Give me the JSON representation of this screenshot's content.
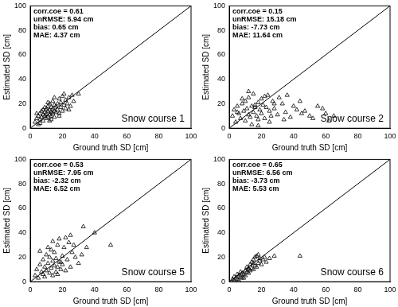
{
  "chart_data": [
    {
      "type": "scatter",
      "title": "Snow course 1",
      "x_label": "Ground truth SD [cm]",
      "y_label": "Estimated SD [cm]",
      "annotations": [
        "corr.coe = 0.61",
        "unRMSE: 5.94 cm",
        "bias: 0.65 cm",
        "MAE: 4.37 cm"
      ],
      "xlim": [
        0,
        100
      ],
      "ylim": [
        0,
        100
      ],
      "xticks": [
        0,
        20,
        40,
        60,
        80,
        100
      ],
      "yticks": [
        0,
        20,
        40,
        60,
        80,
        100
      ],
      "grid": false,
      "series": [
        {
          "type": "scatter",
          "marker": "triangle",
          "color": "#000000",
          "x": [
            3,
            4,
            5,
            5,
            6,
            6,
            7,
            7,
            8,
            8,
            8,
            9,
            9,
            10,
            10,
            10,
            11,
            11,
            11,
            12,
            12,
            12,
            13,
            13,
            13,
            14,
            14,
            14,
            15,
            15,
            15,
            16,
            16,
            17,
            17,
            18,
            18,
            19,
            19,
            20,
            20,
            21,
            22,
            22,
            23,
            24,
            25,
            26,
            27,
            30,
            4,
            6,
            9,
            12,
            15,
            18,
            21,
            24,
            11,
            13
          ],
          "values": [
            5,
            8,
            3,
            10,
            7,
            12,
            9,
            14,
            6,
            11,
            15,
            10,
            13,
            8,
            12,
            16,
            9,
            14,
            18,
            11,
            15,
            20,
            10,
            13,
            17,
            12,
            16,
            22,
            9,
            14,
            19,
            13,
            18,
            15,
            20,
            12,
            24,
            17,
            21,
            14,
            26,
            19,
            16,
            23,
            20,
            25,
            18,
            27,
            22,
            28,
            12,
            4,
            17,
            6,
            25,
            10,
            28,
            15,
            21,
            7
          ]
        },
        {
          "type": "line",
          "line_style": "solid",
          "color": "#000000",
          "x": [
            0,
            100
          ],
          "values": [
            0,
            100
          ]
        }
      ]
    },
    {
      "type": "scatter",
      "title": "Snow course 2",
      "x_label": "Ground truth SD [cm]",
      "y_label": "Estimated SD [cm]",
      "annotations": [
        "corr.coe = 0.15",
        "unRMSE: 15.18 cm",
        "bias: -7.73 cm",
        "MAE: 11.64 cm"
      ],
      "xlim": [
        0,
        100
      ],
      "ylim": [
        0,
        100
      ],
      "xticks": [
        0,
        20,
        40,
        60,
        80,
        100
      ],
      "yticks": [
        0,
        20,
        40,
        60,
        80,
        100
      ],
      "grid": false,
      "series": [
        {
          "type": "scatter",
          "marker": "triangle",
          "color": "#000000",
          "x": [
            2,
            3,
            4,
            5,
            6,
            7,
            8,
            9,
            10,
            10,
            11,
            12,
            12,
            13,
            14,
            15,
            15,
            16,
            17,
            18,
            18,
            19,
            20,
            20,
            21,
            22,
            23,
            24,
            25,
            26,
            27,
            28,
            30,
            31,
            33,
            35,
            36,
            38,
            40,
            42,
            44,
            45,
            47,
            50,
            52,
            55,
            58,
            60,
            62,
            65,
            5,
            8,
            14,
            16,
            22,
            25,
            12,
            18,
            28,
            34
          ],
          "values": [
            10,
            15,
            5,
            18,
            12,
            8,
            20,
            14,
            6,
            22,
            16,
            11,
            25,
            9,
            18,
            13,
            28,
            17,
            10,
            21,
            7,
            15,
            24,
            12,
            19,
            8,
            17,
            27,
            14,
            10,
            22,
            16,
            11,
            25,
            20,
            13,
            27,
            9,
            18,
            15,
            22,
            12,
            14,
            10,
            8,
            18,
            16,
            12,
            6,
            10,
            13,
            24,
            3,
            19,
            26,
            5,
            30,
            2,
            20,
            7
          ]
        },
        {
          "type": "line",
          "line_style": "solid",
          "color": "#000000",
          "x": [
            0,
            100
          ],
          "values": [
            0,
            100
          ]
        }
      ]
    },
    {
      "type": "scatter",
      "title": "Snow course 5",
      "x_label": "Ground truth SD [cm]",
      "y_label": "Estimated SD [cm]",
      "annotations": [
        "corr.coe = 0.53",
        "unRMSE: 7.95 cm",
        "bias: -2.32 cm",
        "MAE: 6.52 cm"
      ],
      "xlim": [
        0,
        100
      ],
      "ylim": [
        0,
        100
      ],
      "xticks": [
        0,
        20,
        40,
        60,
        80,
        100
      ],
      "yticks": [
        0,
        20,
        40,
        60,
        80,
        100
      ],
      "grid": false,
      "series": [
        {
          "type": "scatter",
          "marker": "triangle",
          "color": "#000000",
          "x": [
            3,
            4,
            5,
            6,
            7,
            8,
            8,
            9,
            10,
            10,
            11,
            12,
            12,
            13,
            13,
            14,
            14,
            15,
            15,
            16,
            16,
            17,
            17,
            18,
            18,
            19,
            20,
            20,
            21,
            22,
            23,
            24,
            25,
            25,
            26,
            28,
            30,
            32,
            33,
            35,
            40,
            50,
            6,
            9,
            11,
            14,
            17,
            19,
            22,
            27
          ],
          "values": [
            5,
            10,
            3,
            14,
            8,
            18,
            6,
            12,
            22,
            9,
            15,
            7,
            20,
            11,
            26,
            5,
            17,
            13,
            24,
            8,
            19,
            30,
            12,
            16,
            35,
            10,
            21,
            14,
            28,
            9,
            18,
            32,
            12,
            38,
            24,
            20,
            15,
            22,
            45,
            28,
            40,
            30,
            25,
            4,
            28,
            33,
            6,
            16,
            36,
            30
          ]
        },
        {
          "type": "line",
          "line_style": "solid",
          "color": "#000000",
          "x": [
            0,
            100
          ],
          "values": [
            0,
            100
          ]
        }
      ]
    },
    {
      "type": "scatter",
      "title": "Snow course 6",
      "x_label": "Ground truth SD [cm]",
      "y_label": "Estimated SD [cm]",
      "annotations": [
        "corr.coe = 0.65",
        "unRMSE: 6.56 cm",
        "bias: -3.73 cm",
        "MAE: 5.53 cm"
      ],
      "xlim": [
        0,
        100
      ],
      "ylim": [
        0,
        100
      ],
      "xticks": [
        0,
        20,
        40,
        60,
        80,
        100
      ],
      "yticks": [
        0,
        20,
        40,
        60,
        80,
        100
      ],
      "grid": false,
      "series": [
        {
          "type": "scatter",
          "marker": "triangle",
          "color": "#000000",
          "x": [
            2,
            3,
            3,
            4,
            5,
            5,
            6,
            7,
            7,
            8,
            8,
            9,
            10,
            10,
            11,
            11,
            12,
            12,
            13,
            13,
            14,
            14,
            15,
            15,
            16,
            16,
            17,
            17,
            18,
            18,
            19,
            19,
            20,
            21,
            22,
            23,
            25,
            28,
            44,
            6,
            9,
            12,
            15
          ],
          "values": [
            2,
            1,
            4,
            3,
            2,
            6,
            5,
            4,
            8,
            3,
            7,
            6,
            5,
            9,
            8,
            12,
            7,
            10,
            9,
            14,
            11,
            16,
            10,
            18,
            13,
            20,
            12,
            21,
            15,
            22,
            17,
            19,
            14,
            18,
            20,
            16,
            19,
            21,
            21,
            1,
            3,
            11,
            15
          ]
        },
        {
          "type": "line",
          "line_style": "solid",
          "color": "#000000",
          "x": [
            0,
            100
          ],
          "values": [
            0,
            100
          ]
        }
      ]
    }
  ]
}
